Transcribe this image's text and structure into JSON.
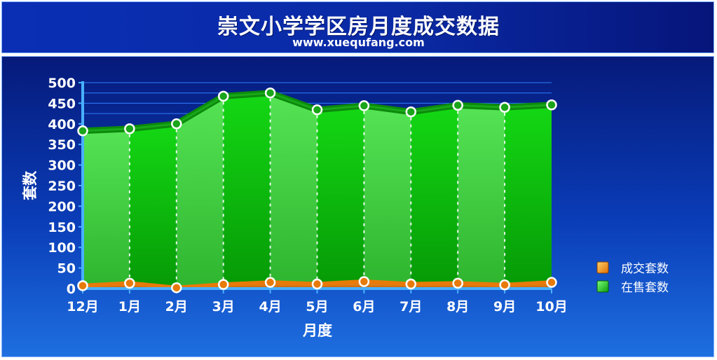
{
  "header": {
    "title": "崇文小学学区房月度成交数据",
    "subtitle": "www.xuequfang.com"
  },
  "colors": {
    "sale_fill": "#1fc21f",
    "sale_line": "#0c8a0c",
    "deal_line": "#e87a0a",
    "marker_fill": "#ffffff",
    "grid": "#2e7cff"
  },
  "chart_data": {
    "type": "area",
    "title": "崇文小学学区房月度成交数据",
    "xlabel": "月度",
    "ylabel": "套数",
    "ylim": [
      0,
      500
    ],
    "yticks": [
      0,
      50,
      100,
      150,
      200,
      250,
      300,
      350,
      400,
      450,
      500
    ],
    "categories": [
      "12月",
      "1月",
      "2月",
      "3月",
      "4月",
      "5月",
      "6月",
      "7月",
      "8月",
      "9月",
      "10月"
    ],
    "grid": "horizontal, top region",
    "legend_position": "right",
    "series": [
      {
        "name": "成交套数",
        "values": [
          7,
          13,
          2,
          10,
          15,
          11,
          17,
          11,
          13,
          9,
          15
        ]
      },
      {
        "name": "在售套数",
        "values": [
          383,
          388,
          400,
          467,
          475,
          434,
          444,
          429,
          445,
          440,
          446
        ]
      }
    ]
  }
}
